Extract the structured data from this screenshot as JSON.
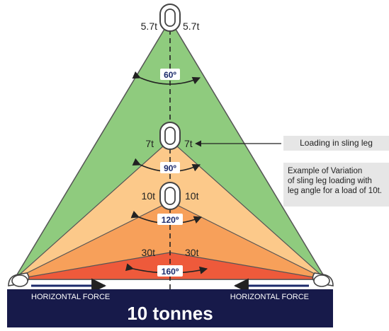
{
  "diagram": {
    "levels": [
      {
        "angle_label": "60º",
        "load_left": "5.7t",
        "load_right": "5.7t",
        "fill": "#8fcb7e"
      },
      {
        "angle_label": "90º",
        "load_left": "7t",
        "load_right": "7t",
        "fill": "#fcc98a"
      },
      {
        "angle_label": "120º",
        "load_left": "10t",
        "load_right": "10t",
        "fill": "#f7a05a"
      },
      {
        "angle_label": "160º",
        "load_left": "30t",
        "load_right": "30t",
        "fill": "#ee5a3b"
      }
    ],
    "horizontal_force_left": "HORIZONTAL FORCE",
    "horizontal_force_right": "HORIZONTAL FORCE",
    "load_label": "10 tonnes",
    "callout_loading": "Loading in sling leg",
    "callout_example_lines": [
      "Example of Variation",
      "of sling leg loading with",
      "leg angle for a load of 10t."
    ],
    "colors": {
      "base_bar": "#171a4a",
      "angle_badge_text": "#1b2a6b",
      "outline": "#555555"
    }
  }
}
